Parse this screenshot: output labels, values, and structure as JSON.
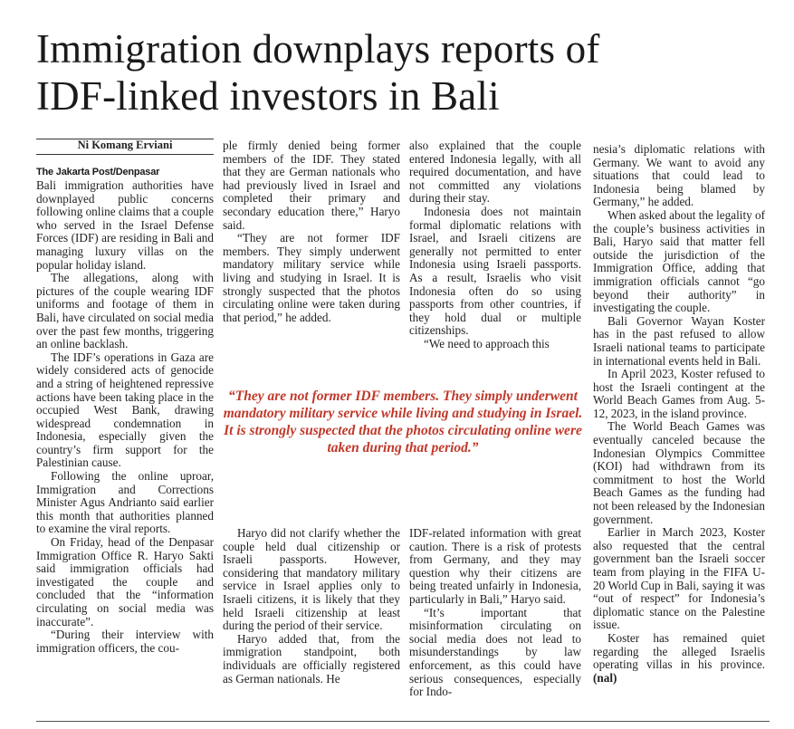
{
  "headline": {
    "line1": "Immigration downplays reports of",
    "line2": "IDF-linked investors in Bali"
  },
  "byline": "Ni Komang Erviani",
  "dateline": "The Jakarta Post/Denpasar",
  "pullquote": "“They are not former IDF members. They simply underwent mandatory military service while living and studying in Israel. It is strongly suspected that the photos circulating online were taken during that period.”",
  "column1": [
    "Bali immigration authorities have downplayed public concerns following online claims that a couple who served in the Israel Defense Forces (IDF) are residing in Bali and managing luxury villas on the popular holiday island.",
    "The allegations, along with pictures of the couple wearing IDF uniforms and footage of them in Bali, have circulated on social media over the past few months, triggering an online backlash.",
    "The IDF’s operations in Gaza are widely considered acts of genocide and a string of heightened repressive actions have been taking place in the occupied West Bank, drawing widespread condemnation in Indonesia, especially given the country’s firm support for the Palestinian cause.",
    "Following the online uproar, Immigration and Corrections Minister Agus Andrianto said earlier this month that authorities planned to examine the viral reports.",
    "On Friday, head of the Denpasar Immigration Office R. Haryo Sakti said immigration officials had investigated the couple and concluded that the “information circulating on social media was inaccurate”.",
    "“During their interview with immigration officers, the cou-"
  ],
  "column2_top": [
    "ple firmly denied being former members of the IDF. They stated that they are German nationals who had previously lived in Israel and completed their primary and secondary education there,” Haryo said.",
    "“They are not former IDF members. They simply underwent mandatory military service while living and studying in Israel. It is strongly suspected that the photos circulating online were taken during that period,” he added."
  ],
  "column3_top": [
    "also explained that the couple entered Indonesia legally, with all required documentation, and have not committed any violations during their stay.",
    "Indonesia does not maintain formal diplomatic relations with Israel, and Israeli citizens are generally not permitted to enter Indonesia using Israeli passports. As a result, Israelis who visit Indonesia often do so using passports from other countries, if they hold dual or multiple citizenships.",
    "“We need to approach this"
  ],
  "column2_bottom": [
    "Haryo did not clarify whether the couple held dual citizenship or Israeli passports. However, considering that mandatory military service in Israel applies only to Israeli citizens, it is likely that they held Israeli citizenship at least during the period of their service.",
    "Haryo added that, from the immigration standpoint, both individuals are officially registered as German nationals. He"
  ],
  "column3_bottom": [
    "IDF-related information with great caution. There is a risk of protests from Germany, and they may question why their citizens are being treated unfairly in Indonesia, particularly in Bali,” Haryo said.",
    "“It’s important that misinformation circulating on social media does not lead to misunderstandings by law enforcement, as this could have serious consequences, especially for Indo-"
  ],
  "column4": [
    "nesia’s diplomatic relations with Germany. We want to avoid any situations that could lead to Indonesia being blamed by Germany,” he added.",
    "When asked about the legality of the couple’s business activities in Bali, Haryo said that matter fell outside the jurisdiction of the Immigration Office, adding that immigration officials cannot “go beyond their authority” in investigating the couple.",
    "Bali Governor Wayan Koster has in the past refused to allow Israeli national teams to participate in international events held in Bali.",
    "In April 2023, Koster refused to host the Israeli contingent at the World Beach Games from Aug. 5-12, 2023, in the island province.",
    "The World Beach Games was eventually canceled because the Indonesian Olympics Committee (KOI) had withdrawn from its commitment to host the World Beach Games as the funding had not been released by the Indonesian government.",
    "Earlier in March 2023, Koster also requested that the central government ban the Israeli soccer team from playing in the FIFA U-20 World Cup in Bali, saying it was “out of respect” for Indonesia’s diplomatic stance on the Palestine issue.",
    "Koster has remained quiet regarding the alleged Israelis operating villas in his province."
  ],
  "signoff": "(nal)",
  "colors": {
    "pullquote": "#c0392b",
    "text": "#1f1f1f"
  }
}
